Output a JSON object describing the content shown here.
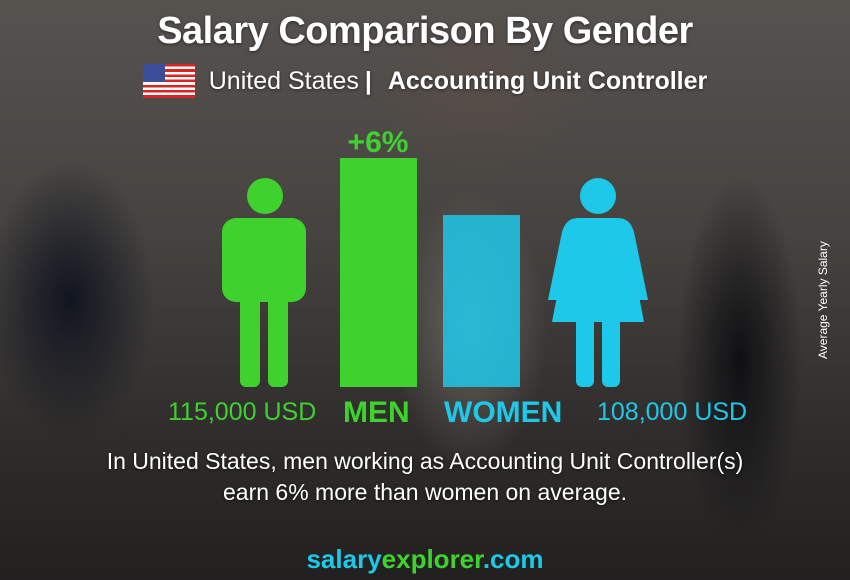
{
  "header": {
    "title": "Salary Comparison By Gender",
    "country": "United States",
    "separator": "|",
    "job": "Accounting Unit Controller",
    "flag_icon": "us-flag-icon"
  },
  "chart_data": {
    "type": "bar",
    "categories": [
      "MEN",
      "WOMEN"
    ],
    "values": [
      115000,
      108000
    ],
    "value_labels": [
      "115,000 USD",
      "108,000 USD"
    ],
    "difference_label": "+6%",
    "colors": {
      "men": "#3fd22e",
      "women": "#1ec8e8"
    },
    "ylabel": "Average Yearly Salary"
  },
  "description": {
    "line1": "In United States, men working as Accounting Unit Controller(s)",
    "line2": "earn 6% more than women on average."
  },
  "brand": {
    "part1": "salary",
    "part2": "explorer",
    "part3": ".com"
  }
}
